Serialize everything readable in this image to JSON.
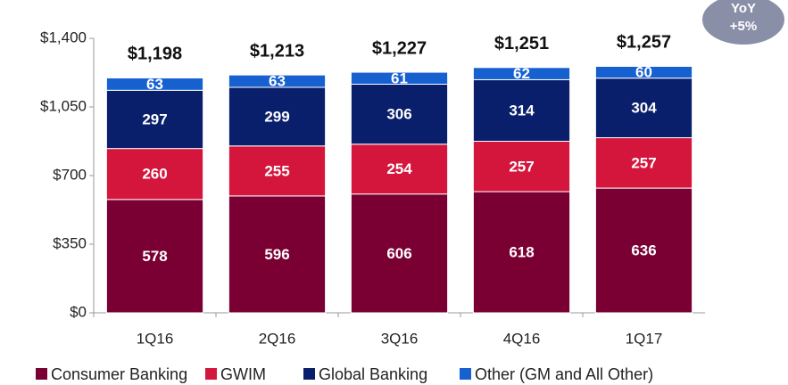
{
  "chart_data": {
    "type": "stacked_bar",
    "categories": [
      "1Q16",
      "2Q16",
      "3Q16",
      "4Q16",
      "1Q17"
    ],
    "series": [
      {
        "name": "Consumer Banking",
        "color": "#7a0033",
        "values": [
          578,
          596,
          606,
          618,
          636
        ]
      },
      {
        "name": "GWIM",
        "color": "#d4163c",
        "values": [
          260,
          255,
          254,
          257,
          257
        ]
      },
      {
        "name": "Global Banking",
        "color": "#0a1f6b",
        "values": [
          297,
          299,
          306,
          314,
          304
        ]
      },
      {
        "name": "Other (GM and All Other)",
        "color": "#1660d0",
        "values": [
          63,
          63,
          61,
          62,
          60
        ]
      }
    ],
    "total_labels": [
      "$1,198",
      "$1,213",
      "$1,227",
      "$1,251",
      "$1,257"
    ],
    "annotation": [
      "YoY",
      "+5%"
    ],
    "ylim": [
      0,
      1400
    ],
    "yticks": [
      {
        "value": 0,
        "label": "$0"
      },
      {
        "value": 350,
        "label": "$350"
      },
      {
        "value": 700,
        "label": "$700"
      },
      {
        "value": 1050,
        "label": "$1,050"
      },
      {
        "value": 1400,
        "label": "$1,400"
      }
    ],
    "grid": false,
    "legend": "bottom"
  }
}
